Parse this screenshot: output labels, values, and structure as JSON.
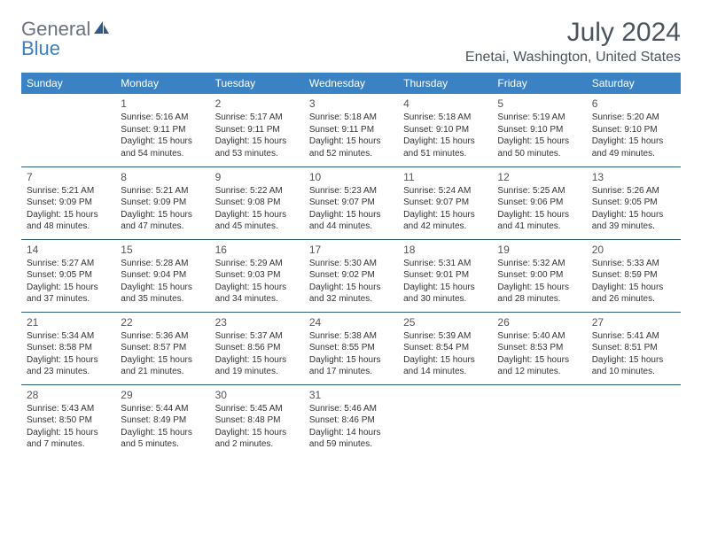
{
  "logo": {
    "text1": "General",
    "text2": "Blue"
  },
  "title": "July 2024",
  "location": "Enetai, Washington, United States",
  "colors": {
    "header_bg": "#3b82c4",
    "header_text": "#ffffff",
    "border": "#2f5a7a",
    "title_color": "#4a5560",
    "logo_gray": "#6b7280",
    "logo_blue": "#3b82c4"
  },
  "weekdays": [
    "Sunday",
    "Monday",
    "Tuesday",
    "Wednesday",
    "Thursday",
    "Friday",
    "Saturday"
  ],
  "weeks": [
    [
      null,
      {
        "n": "1",
        "sr": "Sunrise: 5:16 AM",
        "ss": "Sunset: 9:11 PM",
        "d1": "Daylight: 15 hours",
        "d2": "and 54 minutes."
      },
      {
        "n": "2",
        "sr": "Sunrise: 5:17 AM",
        "ss": "Sunset: 9:11 PM",
        "d1": "Daylight: 15 hours",
        "d2": "and 53 minutes."
      },
      {
        "n": "3",
        "sr": "Sunrise: 5:18 AM",
        "ss": "Sunset: 9:11 PM",
        "d1": "Daylight: 15 hours",
        "d2": "and 52 minutes."
      },
      {
        "n": "4",
        "sr": "Sunrise: 5:18 AM",
        "ss": "Sunset: 9:10 PM",
        "d1": "Daylight: 15 hours",
        "d2": "and 51 minutes."
      },
      {
        "n": "5",
        "sr": "Sunrise: 5:19 AM",
        "ss": "Sunset: 9:10 PM",
        "d1": "Daylight: 15 hours",
        "d2": "and 50 minutes."
      },
      {
        "n": "6",
        "sr": "Sunrise: 5:20 AM",
        "ss": "Sunset: 9:10 PM",
        "d1": "Daylight: 15 hours",
        "d2": "and 49 minutes."
      }
    ],
    [
      {
        "n": "7",
        "sr": "Sunrise: 5:21 AM",
        "ss": "Sunset: 9:09 PM",
        "d1": "Daylight: 15 hours",
        "d2": "and 48 minutes."
      },
      {
        "n": "8",
        "sr": "Sunrise: 5:21 AM",
        "ss": "Sunset: 9:09 PM",
        "d1": "Daylight: 15 hours",
        "d2": "and 47 minutes."
      },
      {
        "n": "9",
        "sr": "Sunrise: 5:22 AM",
        "ss": "Sunset: 9:08 PM",
        "d1": "Daylight: 15 hours",
        "d2": "and 45 minutes."
      },
      {
        "n": "10",
        "sr": "Sunrise: 5:23 AM",
        "ss": "Sunset: 9:07 PM",
        "d1": "Daylight: 15 hours",
        "d2": "and 44 minutes."
      },
      {
        "n": "11",
        "sr": "Sunrise: 5:24 AM",
        "ss": "Sunset: 9:07 PM",
        "d1": "Daylight: 15 hours",
        "d2": "and 42 minutes."
      },
      {
        "n": "12",
        "sr": "Sunrise: 5:25 AM",
        "ss": "Sunset: 9:06 PM",
        "d1": "Daylight: 15 hours",
        "d2": "and 41 minutes."
      },
      {
        "n": "13",
        "sr": "Sunrise: 5:26 AM",
        "ss": "Sunset: 9:05 PM",
        "d1": "Daylight: 15 hours",
        "d2": "and 39 minutes."
      }
    ],
    [
      {
        "n": "14",
        "sr": "Sunrise: 5:27 AM",
        "ss": "Sunset: 9:05 PM",
        "d1": "Daylight: 15 hours",
        "d2": "and 37 minutes."
      },
      {
        "n": "15",
        "sr": "Sunrise: 5:28 AM",
        "ss": "Sunset: 9:04 PM",
        "d1": "Daylight: 15 hours",
        "d2": "and 35 minutes."
      },
      {
        "n": "16",
        "sr": "Sunrise: 5:29 AM",
        "ss": "Sunset: 9:03 PM",
        "d1": "Daylight: 15 hours",
        "d2": "and 34 minutes."
      },
      {
        "n": "17",
        "sr": "Sunrise: 5:30 AM",
        "ss": "Sunset: 9:02 PM",
        "d1": "Daylight: 15 hours",
        "d2": "and 32 minutes."
      },
      {
        "n": "18",
        "sr": "Sunrise: 5:31 AM",
        "ss": "Sunset: 9:01 PM",
        "d1": "Daylight: 15 hours",
        "d2": "and 30 minutes."
      },
      {
        "n": "19",
        "sr": "Sunrise: 5:32 AM",
        "ss": "Sunset: 9:00 PM",
        "d1": "Daylight: 15 hours",
        "d2": "and 28 minutes."
      },
      {
        "n": "20",
        "sr": "Sunrise: 5:33 AM",
        "ss": "Sunset: 8:59 PM",
        "d1": "Daylight: 15 hours",
        "d2": "and 26 minutes."
      }
    ],
    [
      {
        "n": "21",
        "sr": "Sunrise: 5:34 AM",
        "ss": "Sunset: 8:58 PM",
        "d1": "Daylight: 15 hours",
        "d2": "and 23 minutes."
      },
      {
        "n": "22",
        "sr": "Sunrise: 5:36 AM",
        "ss": "Sunset: 8:57 PM",
        "d1": "Daylight: 15 hours",
        "d2": "and 21 minutes."
      },
      {
        "n": "23",
        "sr": "Sunrise: 5:37 AM",
        "ss": "Sunset: 8:56 PM",
        "d1": "Daylight: 15 hours",
        "d2": "and 19 minutes."
      },
      {
        "n": "24",
        "sr": "Sunrise: 5:38 AM",
        "ss": "Sunset: 8:55 PM",
        "d1": "Daylight: 15 hours",
        "d2": "and 17 minutes."
      },
      {
        "n": "25",
        "sr": "Sunrise: 5:39 AM",
        "ss": "Sunset: 8:54 PM",
        "d1": "Daylight: 15 hours",
        "d2": "and 14 minutes."
      },
      {
        "n": "26",
        "sr": "Sunrise: 5:40 AM",
        "ss": "Sunset: 8:53 PM",
        "d1": "Daylight: 15 hours",
        "d2": "and 12 minutes."
      },
      {
        "n": "27",
        "sr": "Sunrise: 5:41 AM",
        "ss": "Sunset: 8:51 PM",
        "d1": "Daylight: 15 hours",
        "d2": "and 10 minutes."
      }
    ],
    [
      {
        "n": "28",
        "sr": "Sunrise: 5:43 AM",
        "ss": "Sunset: 8:50 PM",
        "d1": "Daylight: 15 hours",
        "d2": "and 7 minutes."
      },
      {
        "n": "29",
        "sr": "Sunrise: 5:44 AM",
        "ss": "Sunset: 8:49 PM",
        "d1": "Daylight: 15 hours",
        "d2": "and 5 minutes."
      },
      {
        "n": "30",
        "sr": "Sunrise: 5:45 AM",
        "ss": "Sunset: 8:48 PM",
        "d1": "Daylight: 15 hours",
        "d2": "and 2 minutes."
      },
      {
        "n": "31",
        "sr": "Sunrise: 5:46 AM",
        "ss": "Sunset: 8:46 PM",
        "d1": "Daylight: 14 hours",
        "d2": "and 59 minutes."
      },
      null,
      null,
      null
    ]
  ]
}
